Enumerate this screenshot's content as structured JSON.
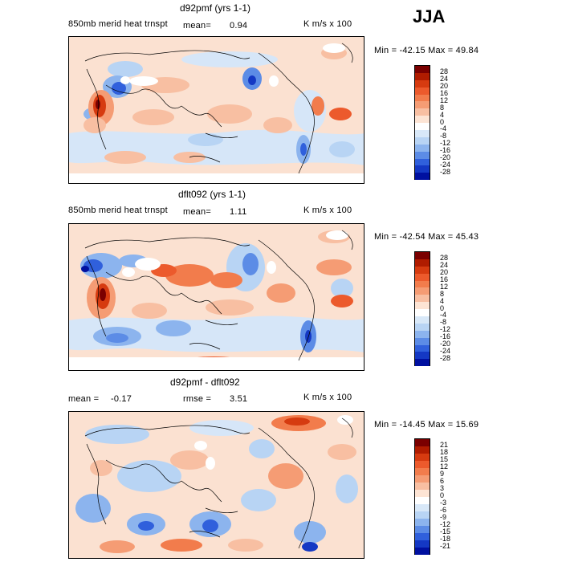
{
  "season": "JJA",
  "panels": [
    {
      "title": "d92pmf (yrs 1-1)",
      "variable": "850mb merid heat trnspt",
      "stat1_label": "mean=",
      "stat1_value": "0.94",
      "stat2_label": "",
      "stat2_value": "",
      "units": "K m/s x 100",
      "minmax": "Min = -42.15 Max =  49.84",
      "levels": [
        "28",
        "24",
        "20",
        "16",
        "12",
        "8",
        "4",
        "0",
        "-4",
        "-8",
        "-12",
        "-16",
        "-20",
        "-24",
        "-28"
      ]
    },
    {
      "title": "dflt092 (yrs 1-1)",
      "variable": "850mb merid heat trnspt",
      "stat1_label": "mean=",
      "stat1_value": "1.11",
      "stat2_label": "",
      "stat2_value": "",
      "units": "K m/s x 100",
      "minmax": "Min = -42.54 Max =  45.43",
      "levels": [
        "28",
        "24",
        "20",
        "16",
        "12",
        "8",
        "4",
        "0",
        "-4",
        "-8",
        "-12",
        "-16",
        "-20",
        "-24",
        "-28"
      ]
    },
    {
      "title": "d92pmf - dflt092",
      "variable": "",
      "stat1_label": "mean =",
      "stat1_value": "-0.17",
      "stat2_label": "rmse =",
      "stat2_value": "3.51",
      "units": "K m/s x 100",
      "minmax": "Min = -14.45 Max =  15.69",
      "levels": [
        "21",
        "18",
        "15",
        "12",
        "9",
        "6",
        "3",
        "0",
        "-3",
        "-6",
        "-9",
        "-12",
        "-15",
        "-18",
        "-21"
      ]
    }
  ],
  "palette": [
    "#7a0000",
    "#b01c00",
    "#d63b10",
    "#ec5a2c",
    "#f27c4c",
    "#f59c74",
    "#f8bfa2",
    "#fde4d4",
    "#ffffff",
    "#d8e8f8",
    "#b8d4f4",
    "#8cb4ee",
    "#5c8ce6",
    "#3060dc",
    "#1438c4",
    "#0010a0"
  ]
}
